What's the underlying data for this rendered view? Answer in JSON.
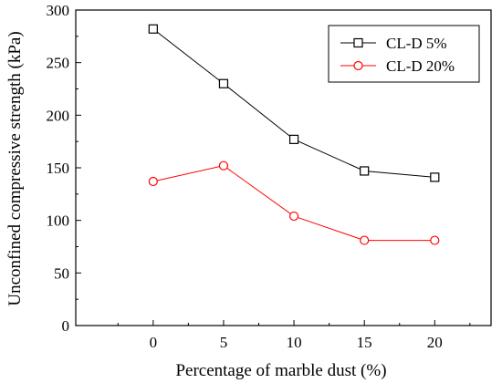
{
  "chart_data": {
    "type": "line",
    "title": "",
    "xlabel": "Percentage of marble dust (%)",
    "ylabel": "Unconfined compressive strength (kPa)",
    "x": [
      0,
      5,
      10,
      15,
      20
    ],
    "xticks": [
      "0",
      "5",
      "10",
      "15",
      "20"
    ],
    "xlim": [
      -5.5,
      24
    ],
    "ylim": [
      0,
      300
    ],
    "yticks": [
      "0",
      "50",
      "100",
      "150",
      "200",
      "250",
      "300"
    ],
    "grid": false,
    "legend_position": "top-right",
    "series": [
      {
        "name": "CL-D 5%",
        "values": [
          282,
          230,
          177,
          147,
          141
        ],
        "color": "#000000",
        "marker": "square"
      },
      {
        "name": "CL-D 20%",
        "values": [
          137,
          152,
          104,
          81,
          81
        ],
        "color": "#ff0000",
        "marker": "circle"
      }
    ]
  }
}
